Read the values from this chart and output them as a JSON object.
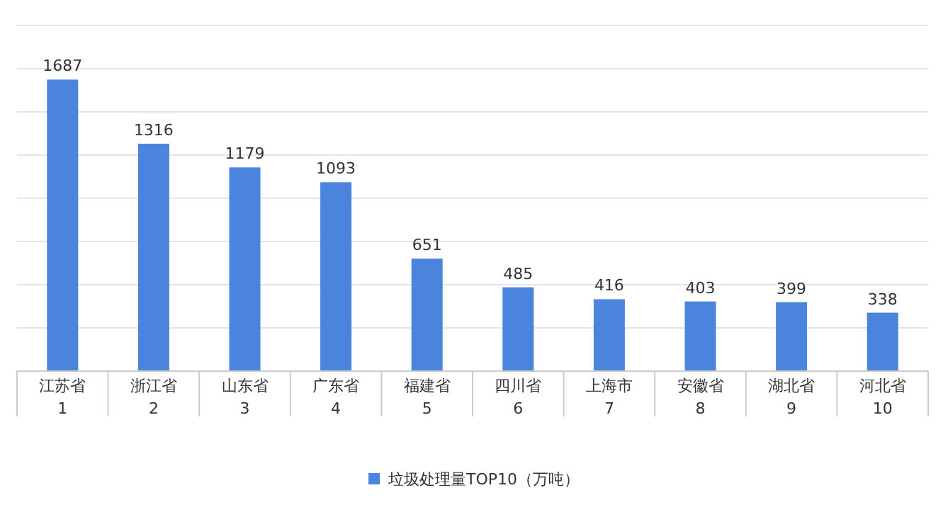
{
  "chart_data": {
    "type": "bar",
    "categories": [
      "江苏省\n1",
      "浙江省\n2",
      "山东省\n3",
      "广东省\n4",
      "福建省\n5",
      "四川省\n6",
      "上海市\n7",
      "安徽省\n8",
      "湖北省\n9",
      "河北省\n10"
    ],
    "series": [
      {
        "name": "垃圾处理量TOP10（万吨）",
        "color": "#4a84dc",
        "values": [
          1687,
          1316,
          1179,
          1093,
          651,
          485,
          416,
          403,
          399,
          338
        ]
      }
    ],
    "data_labels": true,
    "relative": false,
    "grid": "y",
    "legend": "bottom"
  }
}
